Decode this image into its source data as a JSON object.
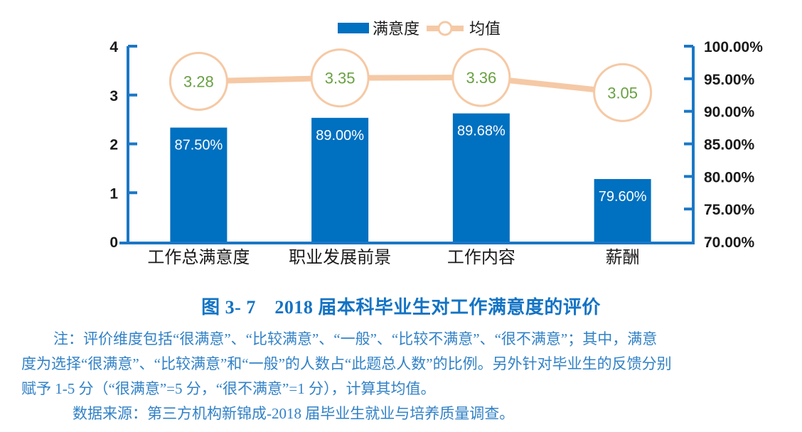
{
  "chart_data": {
    "type": "bar",
    "title": "",
    "categories": [
      "工作总满意度",
      "职业发展前景",
      "工作内容",
      "薪酬"
    ],
    "series": [
      {
        "name": "满意度",
        "type": "bar",
        "axis": "right",
        "values": [
          87.5,
          89.0,
          89.68,
          79.6
        ],
        "labels": [
          "87.50%",
          "89.00%",
          "89.68%",
          "79.60%"
        ]
      },
      {
        "name": "均值",
        "type": "line",
        "axis": "left",
        "values": [
          3.28,
          3.35,
          3.36,
          3.05
        ],
        "labels": [
          "3.28",
          "3.35",
          "3.36",
          "3.05"
        ]
      }
    ],
    "left_axis": {
      "ylim": [
        0,
        4
      ],
      "ticks": [
        {
          "value": 0,
          "label": "0"
        },
        {
          "value": 1,
          "label": "1"
        },
        {
          "value": 2,
          "label": "2"
        },
        {
          "value": 3,
          "label": "3"
        },
        {
          "value": 4,
          "label": "4"
        }
      ]
    },
    "right_axis": {
      "ylim": [
        70,
        100
      ],
      "ticks": [
        {
          "value": 70,
          "label": "70.00%"
        },
        {
          "value": 75,
          "label": "75.00%"
        },
        {
          "value": 80,
          "label": "80.00%"
        },
        {
          "value": 85,
          "label": "85.00%"
        },
        {
          "value": 90,
          "label": "90.00%"
        },
        {
          "value": 95,
          "label": "95.00%"
        },
        {
          "value": 100,
          "label": "100.00%"
        }
      ]
    },
    "legend": [
      {
        "label": "满意度",
        "marker": "bar"
      },
      {
        "label": "均值",
        "marker": "line-circle"
      }
    ],
    "legend_position": "top-center",
    "grid": false,
    "colors": {
      "bar": "#0070C0",
      "bar_label_text": "#FFFFFF",
      "line": "#F5C9A5",
      "mean_text": "#69A042",
      "axis": "#1B77C5",
      "tick_text": "#1A1A1A"
    }
  },
  "caption": "图 3- 7　2018 届本科毕业生对工作满意度的评价",
  "caption_color": "#1373C4",
  "notes_color": "#3181C6",
  "notes": {
    "line1": "注：评价维度包括“很满意”、“比较满意”、“一般”、“比较不满意”、“很不满意”；其中，满意",
    "line2": "度为选择“很满意”、“比较满意”和“一般”的人数占“此题总人数”的比例。另外针对毕业生的反馈分别",
    "line3": "赋予 1-5 分（“很满意”=5 分，“很不满意”=1 分），计算其均值。",
    "line4": "数据来源：第三方机构新锦成-2018 届毕业生就业与培养质量调查。"
  }
}
